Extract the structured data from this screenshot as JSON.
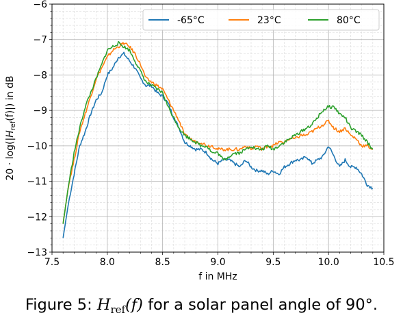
{
  "chart_data": {
    "type": "line",
    "title": "",
    "xlabel": "f in MHz",
    "ylabel": "20 · log(|H_ref(f)|) in dB",
    "xlim": [
      7.5,
      10.5
    ],
    "ylim": [
      -13,
      -6
    ],
    "xticks": [
      "7.5",
      "8.0",
      "8.5",
      "9.0",
      "9.5",
      "10.0",
      "10.5"
    ],
    "yticks": [
      "−13",
      "−12",
      "−11",
      "−10",
      "−9",
      "−8",
      "−7",
      "−6"
    ],
    "grid": true,
    "legend_position": "top-right",
    "series": [
      {
        "name": "-65°C",
        "color": "#1f77b4",
        "x": [
          7.6,
          7.65,
          7.7,
          7.75,
          7.8,
          7.85,
          7.9,
          7.95,
          8.0,
          8.05,
          8.1,
          8.15,
          8.2,
          8.25,
          8.3,
          8.35,
          8.4,
          8.45,
          8.5,
          8.55,
          8.6,
          8.65,
          8.7,
          8.75,
          8.8,
          8.85,
          8.9,
          8.95,
          9.0,
          9.05,
          9.1,
          9.15,
          9.2,
          9.25,
          9.3,
          9.35,
          9.4,
          9.45,
          9.5,
          9.55,
          9.6,
          9.65,
          9.7,
          9.75,
          9.8,
          9.85,
          9.9,
          9.95,
          10.0,
          10.05,
          10.1,
          10.15,
          10.2,
          10.25,
          10.3,
          10.35,
          10.4
        ],
        "y": [
          -12.6,
          -11.6,
          -10.8,
          -10.0,
          -9.6,
          -9.1,
          -8.7,
          -8.5,
          -8.0,
          -7.8,
          -7.5,
          -7.4,
          -7.6,
          -7.8,
          -8.1,
          -8.3,
          -8.3,
          -8.5,
          -8.6,
          -8.8,
          -9.2,
          -9.5,
          -9.9,
          -10.0,
          -10.1,
          -10.1,
          -10.2,
          -10.4,
          -10.5,
          -10.4,
          -10.4,
          -10.5,
          -10.6,
          -10.4,
          -10.6,
          -10.7,
          -10.7,
          -10.8,
          -10.7,
          -10.8,
          -10.6,
          -10.5,
          -10.4,
          -10.4,
          -10.3,
          -10.5,
          -10.4,
          -10.3,
          -10.0,
          -10.3,
          -10.6,
          -10.4,
          -10.6,
          -10.6,
          -10.8,
          -11.1,
          -11.2
        ]
      },
      {
        "name": "23°C",
        "color": "#ff7f0e",
        "x": [
          7.6,
          7.65,
          7.7,
          7.75,
          7.8,
          7.85,
          7.9,
          7.95,
          8.0,
          8.05,
          8.1,
          8.15,
          8.2,
          8.25,
          8.3,
          8.35,
          8.4,
          8.45,
          8.5,
          8.55,
          8.6,
          8.65,
          8.7,
          8.75,
          8.8,
          8.85,
          8.9,
          8.95,
          9.0,
          9.05,
          9.1,
          9.15,
          9.2,
          9.25,
          9.3,
          9.35,
          9.4,
          9.45,
          9.5,
          9.55,
          9.6,
          9.65,
          9.7,
          9.75,
          9.8,
          9.85,
          9.9,
          9.95,
          10.0,
          10.05,
          10.1,
          10.15,
          10.2,
          10.25,
          10.3,
          10.35,
          10.4
        ],
        "y": [
          -12.2,
          -11.1,
          -10.4,
          -9.6,
          -9.1,
          -8.6,
          -8.1,
          -7.8,
          -7.5,
          -7.3,
          -7.2,
          -7.1,
          -7.2,
          -7.4,
          -7.7,
          -8.1,
          -8.2,
          -8.3,
          -8.4,
          -8.7,
          -9.0,
          -9.3,
          -9.7,
          -9.8,
          -9.9,
          -9.9,
          -10.0,
          -10.0,
          -10.1,
          -10.1,
          -10.1,
          -10.1,
          -10.1,
          -10.0,
          -10.1,
          -10.0,
          -10.1,
          -10.0,
          -10.0,
          -9.9,
          -9.9,
          -9.8,
          -9.8,
          -9.7,
          -9.7,
          -9.6,
          -9.5,
          -9.4,
          -9.3,
          -9.5,
          -9.6,
          -9.5,
          -9.7,
          -9.8,
          -10.0,
          -10.0,
          -10.1
        ]
      },
      {
        "name": "80°C",
        "color": "#2ca02c",
        "x": [
          7.6,
          7.65,
          7.7,
          7.75,
          7.8,
          7.85,
          7.9,
          7.95,
          8.0,
          8.05,
          8.1,
          8.15,
          8.2,
          8.25,
          8.3,
          8.35,
          8.4,
          8.45,
          8.5,
          8.55,
          8.6,
          8.65,
          8.7,
          8.75,
          8.8,
          8.85,
          8.9,
          8.95,
          9.0,
          9.05,
          9.1,
          9.15,
          9.2,
          9.25,
          9.3,
          9.35,
          9.4,
          9.45,
          9.5,
          9.55,
          9.6,
          9.65,
          9.7,
          9.75,
          9.8,
          9.85,
          9.9,
          9.95,
          10.0,
          10.05,
          10.1,
          10.15,
          10.2,
          10.25,
          10.3,
          10.35,
          10.4
        ],
        "y": [
          -12.2,
          -11.1,
          -10.2,
          -9.5,
          -8.9,
          -8.5,
          -8.1,
          -7.7,
          -7.3,
          -7.2,
          -7.1,
          -7.2,
          -7.3,
          -7.6,
          -7.9,
          -8.2,
          -8.3,
          -8.4,
          -8.5,
          -8.9,
          -9.2,
          -9.5,
          -9.7,
          -9.8,
          -9.9,
          -10.0,
          -10.0,
          -10.2,
          -10.2,
          -10.4,
          -10.3,
          -10.2,
          -10.2,
          -10.1,
          -10.0,
          -10.1,
          -10.1,
          -10.0,
          -10.1,
          -10.0,
          -9.9,
          -9.8,
          -9.7,
          -9.6,
          -9.5,
          -9.4,
          -9.2,
          -9.0,
          -8.9,
          -8.9,
          -9.1,
          -9.2,
          -9.5,
          -9.6,
          -9.7,
          -9.9,
          -10.1
        ]
      }
    ]
  },
  "caption": {
    "prefix": "Figure 5:",
    "math_H": "H",
    "math_sub": "ref",
    "math_arg": "(f)",
    "suffix": "for a solar panel angle of 90°."
  }
}
